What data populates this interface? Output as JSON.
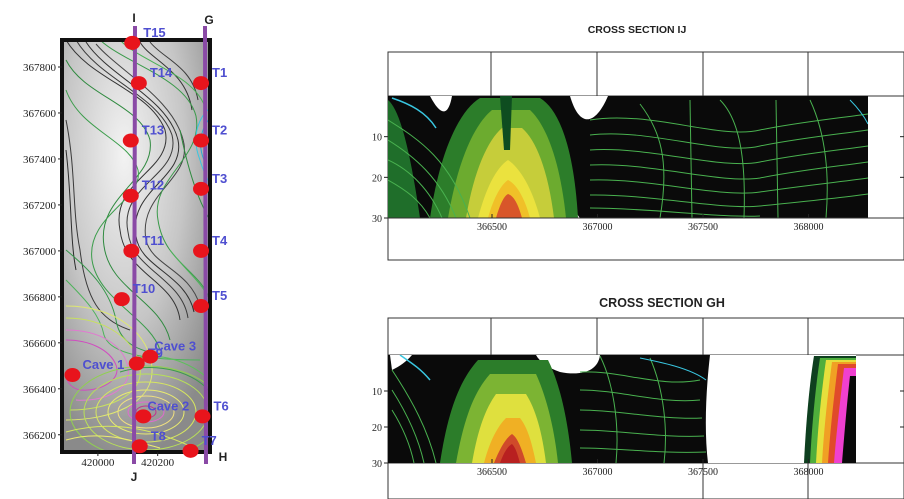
{
  "chart_data": [
    {
      "type": "contour-map",
      "section_end_labels": {
        "I": "I",
        "J": "J",
        "G": "G",
        "H": "H"
      },
      "y_ticks": [
        "367800",
        "367600",
        "367400",
        "367200",
        "367000",
        "366800",
        "366600",
        "366400",
        "366200"
      ],
      "x_ticks": [
        "420000",
        "420200"
      ],
      "points": [
        {
          "label": "T15",
          "x": 420115,
          "y": 367905
        },
        {
          "label": "T14",
          "x": 420137,
          "y": 367730
        },
        {
          "label": "T13",
          "x": 420110,
          "y": 367480
        },
        {
          "label": "T12",
          "x": 420110,
          "y": 367240
        },
        {
          "label": "T11",
          "x": 420112,
          "y": 367000
        },
        {
          "label": "T10",
          "x": 420080,
          "y": 366790
        },
        {
          "label": "T9",
          "x": 420130,
          "y": 366510
        },
        {
          "label": "T8",
          "x": 420140,
          "y": 366150
        },
        {
          "label": "T1",
          "x": 420345,
          "y": 367730
        },
        {
          "label": "T2",
          "x": 420345,
          "y": 367480
        },
        {
          "label": "T3",
          "x": 420345,
          "y": 367270
        },
        {
          "label": "T4",
          "x": 420345,
          "y": 367000
        },
        {
          "label": "T5",
          "x": 420345,
          "y": 366760
        },
        {
          "label": "T6",
          "x": 420350,
          "y": 366280
        },
        {
          "label": "T7",
          "x": 420310,
          "y": 366130
        },
        {
          "label": "Cave 1",
          "x": 419915,
          "y": 366460
        },
        {
          "label": "Cave 2",
          "x": 420152,
          "y": 366280
        },
        {
          "label": "Cave 3",
          "x": 420175,
          "y": 366540
        }
      ]
    },
    {
      "type": "cross-section",
      "title": "CROSS SECTION IJ",
      "x_ticks": [
        "366500",
        "367000",
        "367500",
        "368000"
      ],
      "y_ticks": [
        "10",
        "20",
        "30"
      ]
    },
    {
      "type": "cross-section",
      "title": "CROSS SECTION GH",
      "x_ticks": [
        "366500",
        "367000",
        "367500",
        "368000"
      ],
      "y_ticks": [
        "10",
        "20",
        "30"
      ]
    }
  ]
}
